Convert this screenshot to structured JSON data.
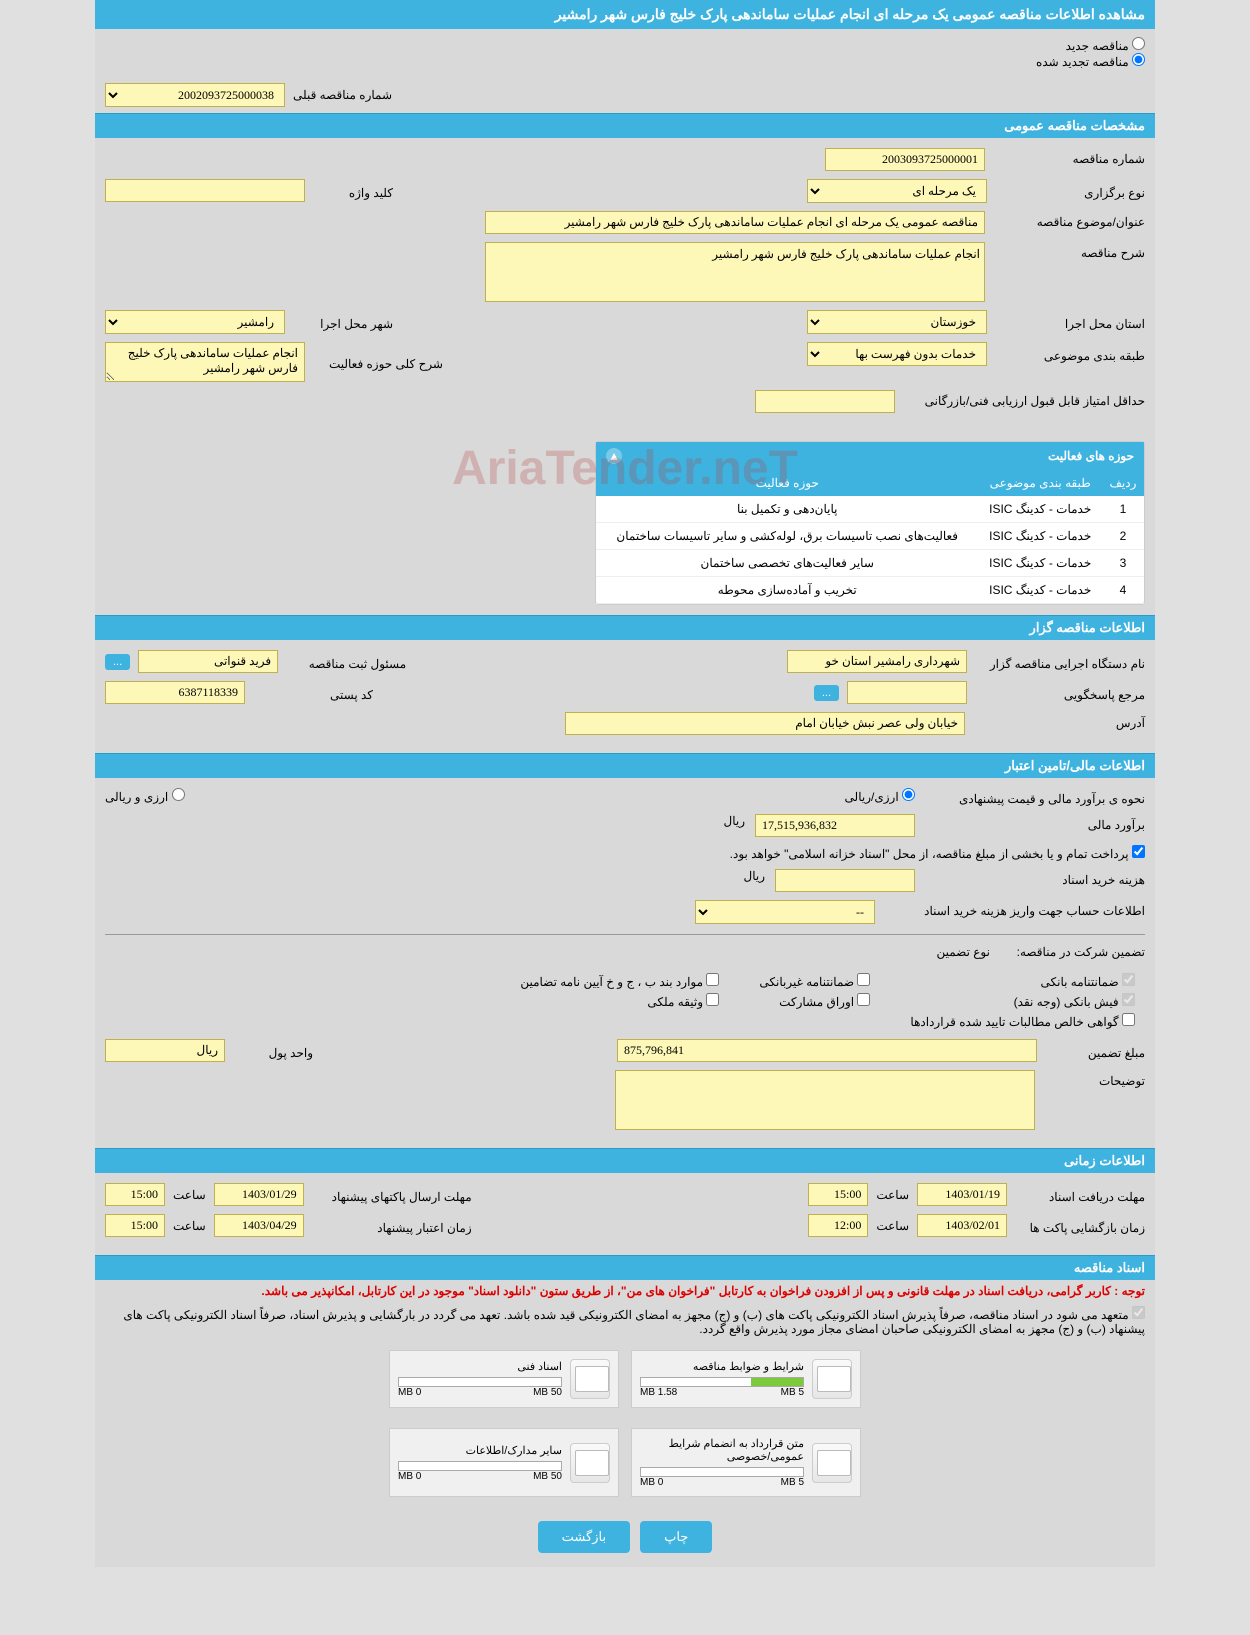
{
  "title": "مشاهده اطلاعات مناقصه عمومی یک مرحله ای انجام عملیات ساماندهی پارک خلیج فارس شهر رامشیر",
  "radio": {
    "new_label": "مناقصه جدید",
    "renewed_label": "مناقصه تجدید شده",
    "prev_number_label": "شماره مناقصه قبلی",
    "prev_number_value": "2002093725000038"
  },
  "sections": {
    "general": "مشخصات مناقصه عمومی",
    "organizer": "اطلاعات مناقصه گزار",
    "financial": "اطلاعات مالی/تامین اعتبار",
    "timing": "اطلاعات زمانی",
    "documents": "اسناد مناقصه"
  },
  "general": {
    "tender_no_label": "شماره مناقصه",
    "tender_no": "2003093725000001",
    "type_label": "نوع برگزاری",
    "type": "یک مرحله ای",
    "keyword_label": "کلید واژه",
    "keyword": "",
    "subject_label": "عنوان/موضوع مناقصه",
    "subject": "مناقصه عمومی یک مرحله ای انجام عملیات ساماندهی پارک خلیج فارس شهر رامشیر",
    "desc_label": "شرح مناقصه",
    "desc": "انجام عملیات ساماندهی پارک خلیج فارس شهر رامشیر",
    "province_label": "استان محل اجرا",
    "province": "خوزستان",
    "city_label": "شهر محل اجرا",
    "city": "رامشیر",
    "category_label": "طبقه بندی موضوعی",
    "category": "خدمات بدون فهرست بها",
    "activity_desc_label": "شرح کلی حوزه فعالیت",
    "activity_desc": "انجام عملیات ساماندهی پارک خلیج فارس شهر رامشیر",
    "min_score_label": "حداقل امتیاز قابل قبول ارزیابی فنی/بازرگانی",
    "min_score": ""
  },
  "activities": {
    "header": "حوزه های فعالیت",
    "cols": {
      "row": "ردیف",
      "category": "طبقه بندی موضوعی",
      "area": "حوزه فعالیت"
    },
    "rows": [
      {
        "n": "1",
        "cat": "خدمات - کدینگ ISIC",
        "area": "پایان‌دهی و تکمیل بنا"
      },
      {
        "n": "2",
        "cat": "خدمات - کدینگ ISIC",
        "area": "فعالیت‌های نصب تاسیسات برق، لوله‌کشی و سایر تاسیسات ساختمان"
      },
      {
        "n": "3",
        "cat": "خدمات - کدینگ ISIC",
        "area": "سایر فعالیت‌های تخصصی ساختمان"
      },
      {
        "n": "4",
        "cat": "خدمات - کدینگ ISIC",
        "area": "تخریب و آماده‌سازی محوطه"
      }
    ]
  },
  "organizer": {
    "org_label": "نام دستگاه اجرایی مناقصه گزار",
    "org": "شهرداری رامشیر استان خو",
    "reg_officer_label": "مسئول ثبت مناقصه",
    "reg_officer": "فرید قنواتی",
    "responder_label": "مرجع پاسخگویی",
    "responder": "",
    "postal_label": "کد پستی",
    "postal": "6387118339",
    "address_label": "آدرس",
    "address": "خیابان ولی عصر نبش خیابان امام"
  },
  "financial": {
    "method_label": "نحوه ی برآورد مالی و قیمت پیشنهادی",
    "opt_fx": "ارزی/ریالی",
    "opt_rial": "ارزی و ریالی",
    "estimate_label": "برآورد مالی",
    "estimate": "17,515,936,832",
    "currency_rial": "ریال",
    "payment_note": "پرداخت تمام و یا بخشی از مبلغ مناقصه، از محل \"اسناد خزانه اسلامی\" خواهد بود.",
    "doc_fee_label": "هزینه خرید اسناد",
    "doc_fee": "",
    "account_label": "اطلاعات حساب جهت واریز هزینه خرید اسناد",
    "account": "--",
    "guarantee_label": "تضمین شرکت در مناقصه:",
    "guarantee_type_label": "نوع تضمین",
    "chk_bank": "ضمانتنامه بانکی",
    "chk_nonbank": "ضمانتنامه غیربانکی",
    "chk_cash": "فیش بانکی (وجه نقد)",
    "chk_bonds": "اوراق مشارکت",
    "chk_clear": "گواهی خالص مطالبات تایید شده قراردادها",
    "chk_items": "موارد بند ب ، ج و خ آیین نامه تضامین",
    "chk_property": "وثیقه ملکی",
    "guarantee_amount_label": "مبلغ تضمین",
    "guarantee_amount": "875,796,841",
    "currency_unit_label": "واحد پول",
    "currency_unit": "ریال",
    "notes_label": "توضیحات",
    "notes": ""
  },
  "timing": {
    "doc_deadline_label": "مهلت دریافت اسناد",
    "doc_deadline_date": "1403/01/19",
    "doc_deadline_time": "15:00",
    "time_label": "ساعت",
    "submit_deadline_label": "مهلت ارسال پاکتهای پیشنهاد",
    "submit_deadline_date": "1403/01/29",
    "submit_deadline_time": "15:00",
    "opening_label": "زمان بازگشایی پاکت ها",
    "opening_date": "1403/02/01",
    "opening_time": "12:00",
    "validity_label": "زمان اعتبار پیشنهاد",
    "validity_date": "1403/04/29",
    "validity_time": "15:00"
  },
  "docs": {
    "note1": "توجه : کاربر گرامی، دریافت اسناد در مهلت قانونی و پس از افزودن فراخوان به کارتابل \"فراخوان های من\"، از طریق ستون \"دانلود اسناد\" موجود در این کارتابل، امکانپذیر می باشد.",
    "note2": "متعهد می شود در اسناد مناقصه، صرفاً پذیرش اسناد الکترونیکی پاکت های (ب) و (ج) مجهز به امضای الکترونیکی قید شده باشد. تعهد می گردد در بارگشایی و پذیرش اسناد، صرفاً اسناد الکترونیکی پاکت های پیشنهاد (ب) و (ج) مجهز به امضای الکترونیکی صاحبان امضای مجاز مورد پذیرش واقع گردد.",
    "files": [
      {
        "name": "شرایط و ضوابط مناقصه",
        "used": "1.58 MB",
        "total": "5 MB",
        "pct": 32
      },
      {
        "name": "اسناد فنی",
        "used": "0 MB",
        "total": "50 MB",
        "pct": 0
      },
      {
        "name": "متن قرارداد به انضمام شرایط عمومی/خصوصی",
        "used": "0 MB",
        "total": "5 MB",
        "pct": 0
      },
      {
        "name": "سایر مدارک/اطلاعات",
        "used": "0 MB",
        "total": "50 MB",
        "pct": 0
      }
    ]
  },
  "buttons": {
    "print": "چاپ",
    "back": "بازگشت",
    "more": "..."
  },
  "watermark": "AriaTender.neT"
}
